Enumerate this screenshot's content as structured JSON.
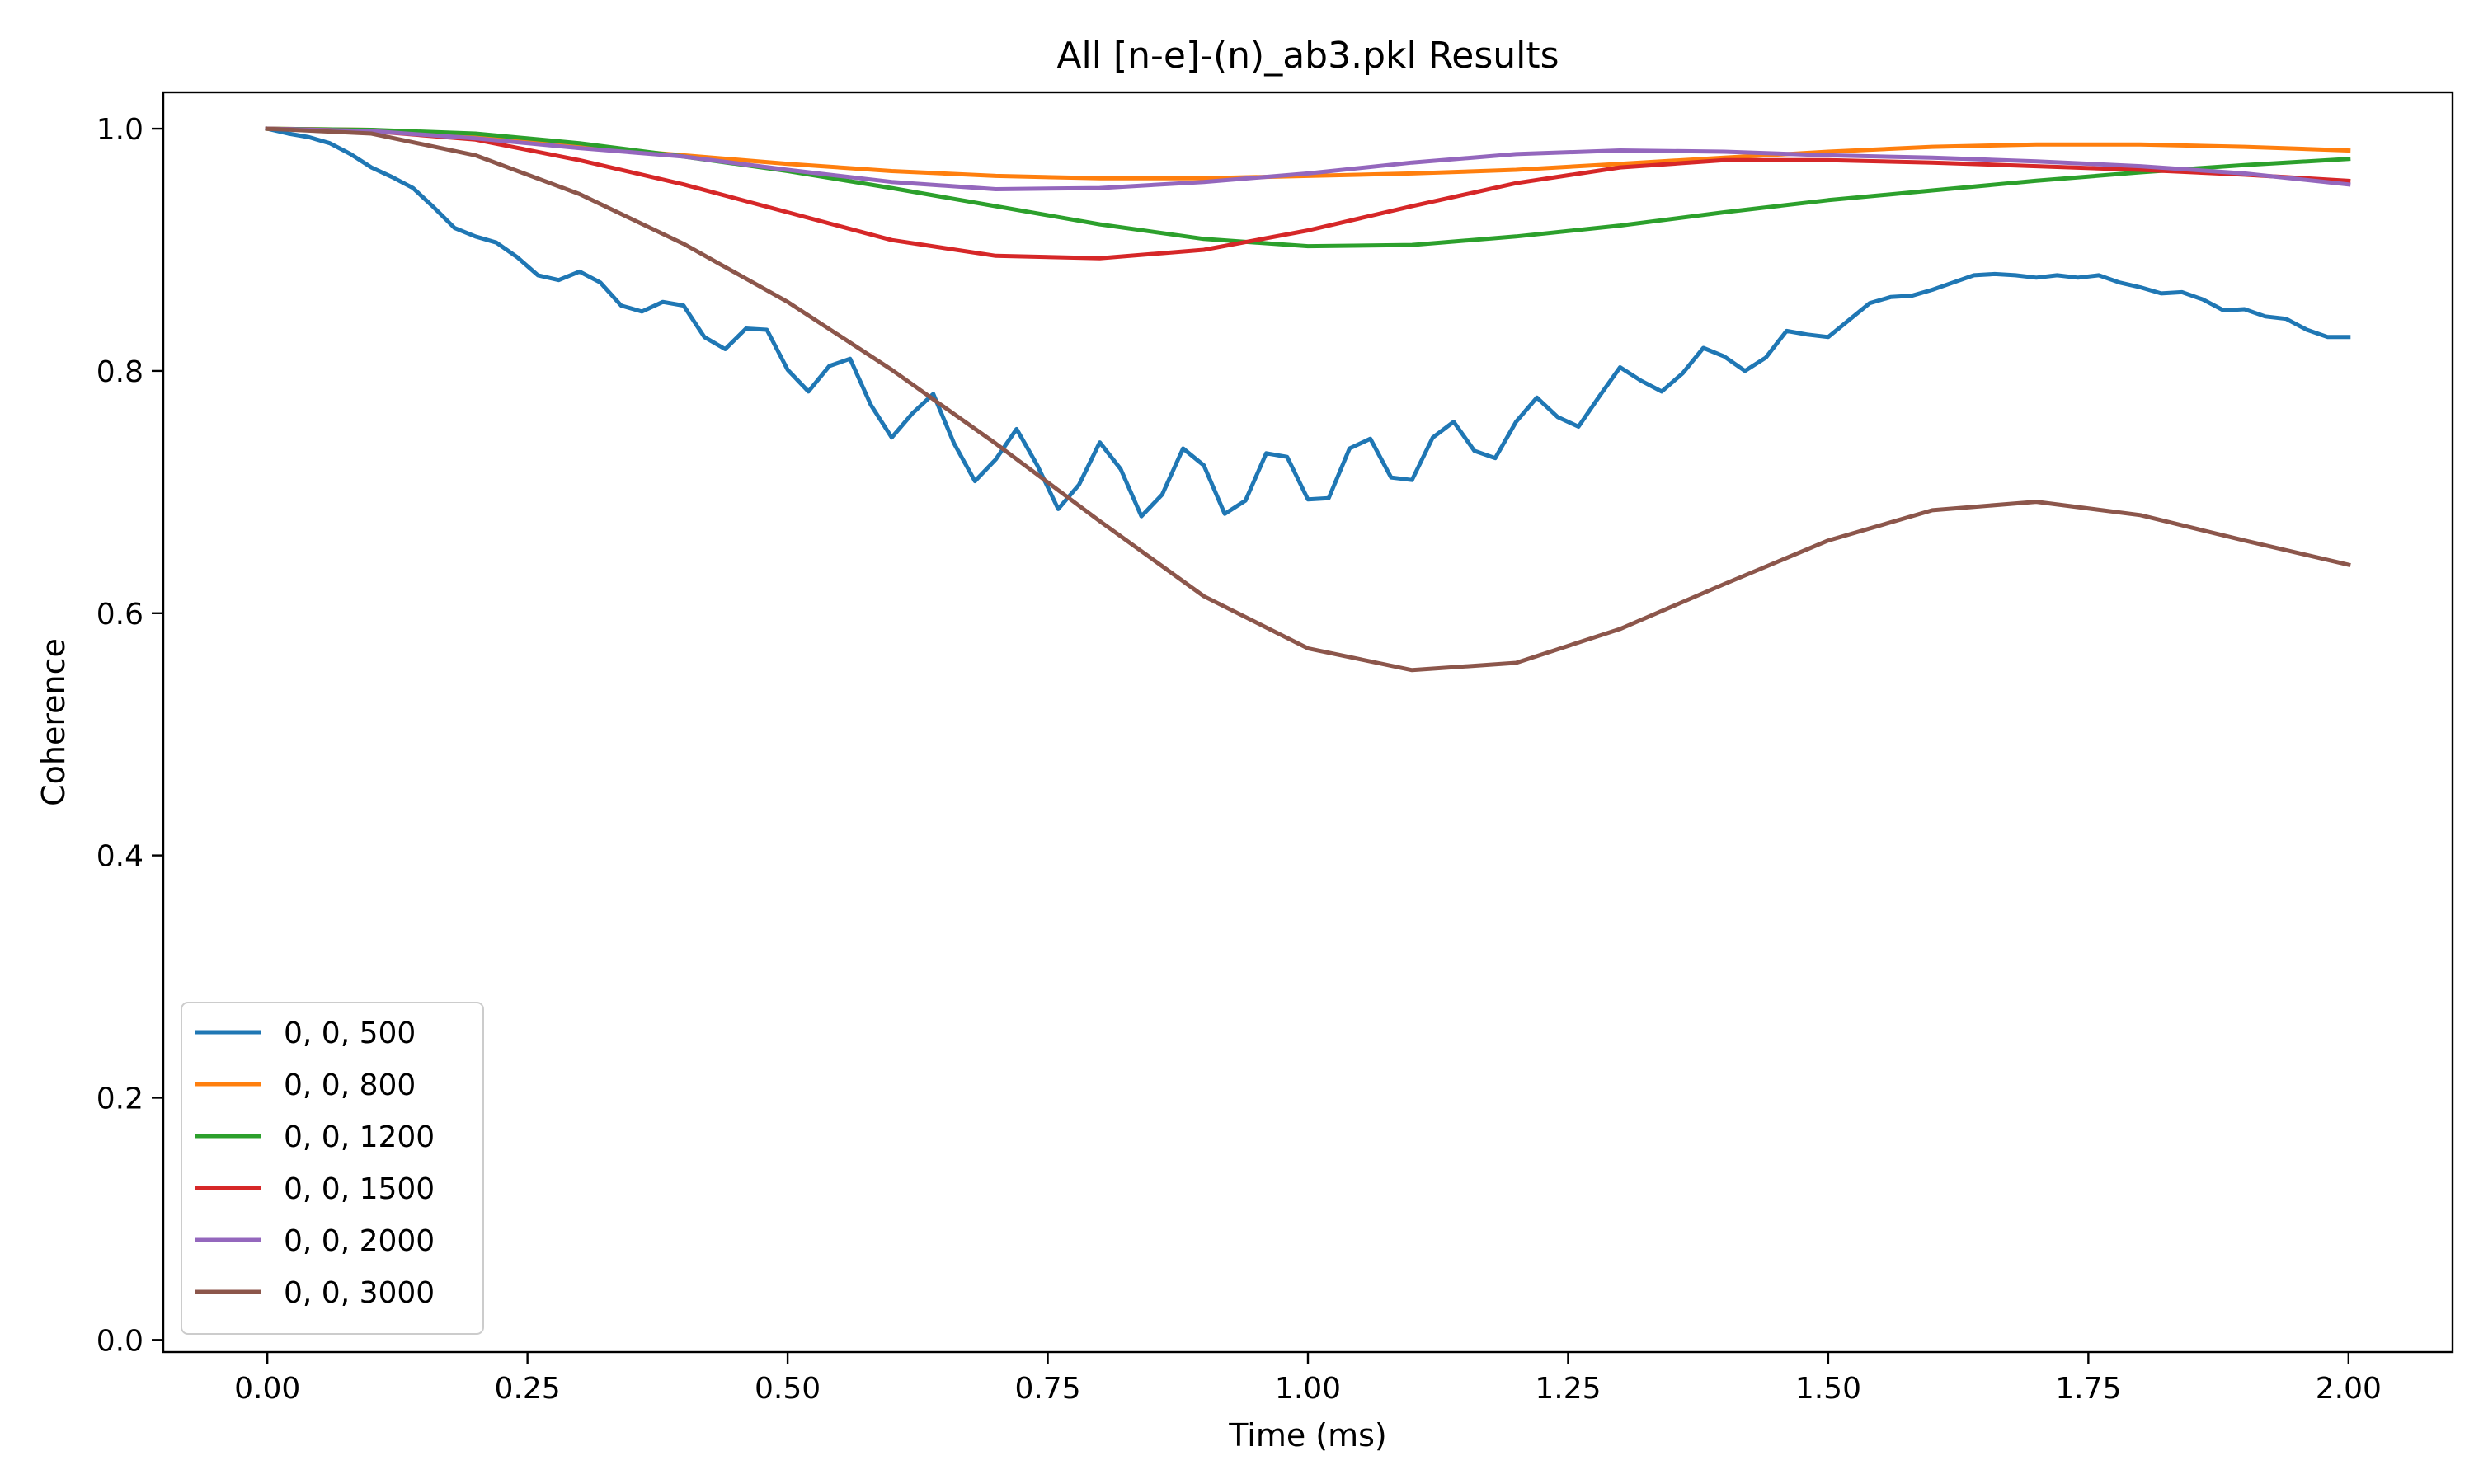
{
  "chart_data": {
    "type": "line",
    "title": "All [n-e]-(n)_ab3.pkl Results",
    "xlabel": "Time (ms)",
    "ylabel": "Coherence",
    "xlim": [
      -0.1,
      2.1
    ],
    "ylim": [
      -0.01,
      1.03
    ],
    "xticks": [
      0.0,
      0.25,
      0.5,
      0.75,
      1.0,
      1.25,
      1.5,
      1.75,
      2.0
    ],
    "xtick_labels": [
      "0.00",
      "0.25",
      "0.50",
      "0.75",
      "1.00",
      "1.25",
      "1.50",
      "1.75",
      "2.00"
    ],
    "yticks": [
      0.0,
      0.2,
      0.4,
      0.6,
      0.8,
      1.0
    ],
    "ytick_labels": [
      "0.0",
      "0.2",
      "0.4",
      "0.6",
      "0.8",
      "1.0"
    ],
    "grid": false,
    "legend_position": "lower-left",
    "series": [
      {
        "name": "0, 0, 500",
        "color": "#1f77b4",
        "x": [
          0.0,
          0.02,
          0.04,
          0.06,
          0.08,
          0.1,
          0.12,
          0.14,
          0.16,
          0.18,
          0.2,
          0.22,
          0.24,
          0.26,
          0.28,
          0.3,
          0.32,
          0.34,
          0.36,
          0.38,
          0.4,
          0.42,
          0.44,
          0.46,
          0.48,
          0.5,
          0.52,
          0.54,
          0.56,
          0.58,
          0.6,
          0.62,
          0.64,
          0.66,
          0.68,
          0.7,
          0.72,
          0.74,
          0.76,
          0.78,
          0.8,
          0.82,
          0.84,
          0.86,
          0.88,
          0.9,
          0.92,
          0.94,
          0.96,
          0.98,
          1.0,
          1.02,
          1.04,
          1.06,
          1.08,
          1.1,
          1.12,
          1.14,
          1.16,
          1.18,
          1.2,
          1.22,
          1.24,
          1.26,
          1.28,
          1.3,
          1.32,
          1.34,
          1.36,
          1.38,
          1.4,
          1.42,
          1.44,
          1.46,
          1.48,
          1.5,
          1.52,
          1.54,
          1.56,
          1.58,
          1.6,
          1.62,
          1.64,
          1.66,
          1.68,
          1.7,
          1.72,
          1.74,
          1.76,
          1.78,
          1.8,
          1.82,
          1.84,
          1.86,
          1.88,
          1.9,
          1.92,
          1.94,
          1.96,
          1.98,
          2.0
        ],
        "y": [
          1.0,
          0.996,
          0.993,
          0.988,
          0.979,
          0.968,
          0.96,
          0.951,
          0.935,
          0.918,
          0.911,
          0.906,
          0.894,
          0.879,
          0.875,
          0.882,
          0.873,
          0.854,
          0.849,
          0.857,
          0.854,
          0.828,
          0.818,
          0.835,
          0.834,
          0.801,
          0.783,
          0.804,
          0.81,
          0.772,
          0.745,
          0.765,
          0.781,
          0.74,
          0.709,
          0.727,
          0.752,
          0.722,
          0.686,
          0.706,
          0.741,
          0.719,
          0.68,
          0.698,
          0.736,
          0.722,
          0.682,
          0.693,
          0.732,
          0.729,
          0.694,
          0.695,
          0.736,
          0.744,
          0.712,
          0.71,
          0.745,
          0.758,
          0.734,
          0.728,
          0.758,
          0.778,
          0.762,
          0.754,
          0.779,
          0.803,
          0.792,
          0.783,
          0.798,
          0.819,
          0.812,
          0.8,
          0.811,
          0.833,
          0.83,
          0.828,
          0.842,
          0.856,
          0.861,
          0.862,
          0.867,
          0.873,
          0.879,
          0.88,
          0.879,
          0.877,
          0.879,
          0.877,
          0.879,
          0.873,
          0.869,
          0.864,
          0.865,
          0.859,
          0.85,
          0.851,
          0.845,
          0.843,
          0.834,
          0.828,
          0.828
        ]
      },
      {
        "name": "0, 0, 800",
        "color": "#ff7f0e",
        "x": [
          0.0,
          0.1,
          0.2,
          0.3,
          0.4,
          0.5,
          0.6,
          0.7,
          0.8,
          0.9,
          1.0,
          1.1,
          1.2,
          1.3,
          1.4,
          1.5,
          1.6,
          1.7,
          1.8,
          1.9,
          2.0
        ],
        "y": [
          1.0,
          0.999,
          0.993,
          0.985,
          0.978,
          0.971,
          0.965,
          0.961,
          0.959,
          0.959,
          0.961,
          0.963,
          0.966,
          0.971,
          0.976,
          0.981,
          0.985,
          0.987,
          0.987,
          0.985,
          0.982
        ]
      },
      {
        "name": "0, 0, 1200",
        "color": "#2ca02c",
        "x": [
          0.0,
          0.1,
          0.2,
          0.3,
          0.4,
          0.5,
          0.6,
          0.7,
          0.8,
          0.9,
          1.0,
          1.1,
          1.2,
          1.3,
          1.4,
          1.5,
          1.6,
          1.7,
          1.8,
          1.9,
          2.0
        ],
        "y": [
          1.0,
          0.999,
          0.996,
          0.988,
          0.977,
          0.965,
          0.951,
          0.936,
          0.921,
          0.909,
          0.903,
          0.904,
          0.911,
          0.92,
          0.931,
          0.941,
          0.949,
          0.957,
          0.964,
          0.97,
          0.975
        ]
      },
      {
        "name": "0, 0, 1500",
        "color": "#d62728",
        "x": [
          0.0,
          0.1,
          0.2,
          0.3,
          0.4,
          0.5,
          0.6,
          0.7,
          0.8,
          0.9,
          1.0,
          1.1,
          1.2,
          1.3,
          1.4,
          1.5,
          1.6,
          1.7,
          1.8,
          1.9,
          2.0
        ],
        "y": [
          1.0,
          0.998,
          0.991,
          0.974,
          0.954,
          0.931,
          0.908,
          0.895,
          0.893,
          0.9,
          0.916,
          0.936,
          0.955,
          0.968,
          0.974,
          0.974,
          0.972,
          0.969,
          0.966,
          0.962,
          0.957
        ]
      },
      {
        "name": "0, 0, 2000",
        "color": "#9467bd",
        "x": [
          0.0,
          0.1,
          0.2,
          0.3,
          0.4,
          0.5,
          0.6,
          0.7,
          0.8,
          0.9,
          1.0,
          1.1,
          1.2,
          1.3,
          1.4,
          1.5,
          1.6,
          1.7,
          1.8,
          1.9,
          2.0
        ],
        "y": [
          1.0,
          0.998,
          0.992,
          0.984,
          0.977,
          0.966,
          0.956,
          0.95,
          0.951,
          0.956,
          0.963,
          0.972,
          0.979,
          0.982,
          0.981,
          0.978,
          0.976,
          0.973,
          0.969,
          0.963,
          0.954
        ]
      },
      {
        "name": "0, 0, 3000",
        "color": "#8c564b",
        "x": [
          0.0,
          0.1,
          0.2,
          0.3,
          0.4,
          0.5,
          0.6,
          0.7,
          0.8,
          0.9,
          1.0,
          1.1,
          1.2,
          1.3,
          1.4,
          1.5,
          1.6,
          1.7,
          1.8,
          1.9,
          2.0
        ],
        "y": [
          1.0,
          0.996,
          0.978,
          0.946,
          0.905,
          0.857,
          0.801,
          0.74,
          0.676,
          0.614,
          0.571,
          0.553,
          0.559,
          0.587,
          0.624,
          0.66,
          0.685,
          0.692,
          0.681,
          0.66,
          0.64
        ]
      }
    ]
  }
}
